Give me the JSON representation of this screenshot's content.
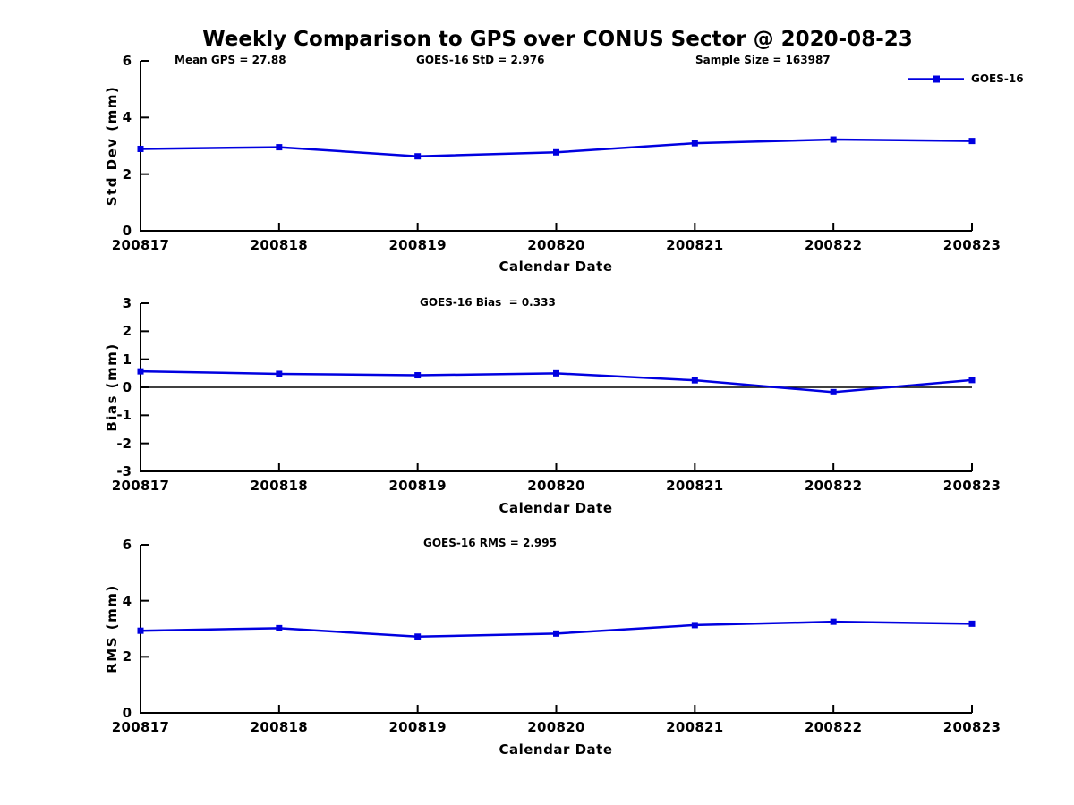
{
  "title": "Weekly Comparison to GPS over CONUS Sector @ 2020-08-23",
  "accent_color": "#0000e0",
  "axis_color": "#000000",
  "legend": {
    "label": "GOES-16",
    "position": "top-right"
  },
  "chart_data": [
    {
      "type": "line",
      "name": "std-dev",
      "categories": [
        "200817",
        "200818",
        "200819",
        "200820",
        "200821",
        "200822",
        "200823"
      ],
      "series": [
        {
          "name": "GOES-16",
          "values": [
            2.89,
            2.95,
            2.63,
            2.77,
            3.09,
            3.22,
            3.17
          ]
        }
      ],
      "xlabel": "Calendar Date",
      "ylabel": "Std Dev (mm)",
      "ylim": [
        0,
        6
      ],
      "yticks": [
        "0",
        "2",
        "4",
        "6"
      ],
      "grid": false,
      "zero_line": false,
      "annotations": [
        "Mean GPS = 27.88",
        "GOES-16 StD = 2.976",
        "Sample Size = 163987"
      ]
    },
    {
      "type": "line",
      "name": "bias",
      "categories": [
        "200817",
        "200818",
        "200819",
        "200820",
        "200821",
        "200822",
        "200823"
      ],
      "series": [
        {
          "name": "GOES-16",
          "values": [
            0.57,
            0.48,
            0.43,
            0.5,
            0.25,
            -0.17,
            0.26
          ]
        }
      ],
      "xlabel": "Calendar Date",
      "ylabel": "Bias (mm)",
      "ylim": [
        -3,
        3
      ],
      "yticks": [
        "-3",
        "-2",
        "-1",
        "0",
        "1",
        "2",
        "3"
      ],
      "grid": false,
      "zero_line": true,
      "annotations": [
        "GOES-16 Bias  = 0.333"
      ]
    },
    {
      "type": "line",
      "name": "rms",
      "categories": [
        "200817",
        "200818",
        "200819",
        "200820",
        "200821",
        "200822",
        "200823"
      ],
      "series": [
        {
          "name": "GOES-16",
          "values": [
            2.93,
            3.02,
            2.72,
            2.83,
            3.13,
            3.25,
            3.18
          ]
        }
      ],
      "xlabel": "Calendar Date",
      "ylabel": "RMS (mm)",
      "ylim": [
        0,
        6
      ],
      "yticks": [
        "0",
        "2",
        "4",
        "6"
      ],
      "grid": false,
      "zero_line": false,
      "annotations": [
        "GOES-16 RMS = 2.995"
      ]
    }
  ]
}
